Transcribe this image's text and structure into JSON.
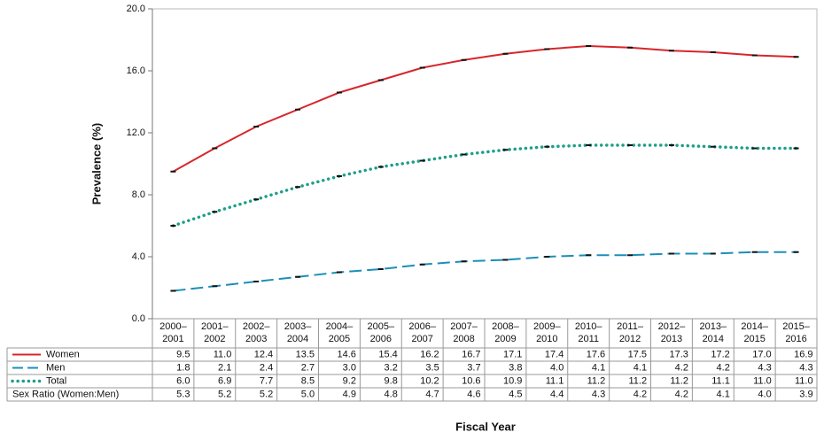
{
  "chart_data": {
    "type": "line",
    "y_label": "Prevalence (%)",
    "x_label": "Fiscal Year",
    "categories": [
      [
        "2000–",
        "2001"
      ],
      [
        "2001–",
        "2002"
      ],
      [
        "2002–",
        "2003"
      ],
      [
        "2003–",
        "2004"
      ],
      [
        "2004–",
        "2005"
      ],
      [
        "2005–",
        "2006"
      ],
      [
        "2006–",
        "2007"
      ],
      [
        "2007–",
        "2008"
      ],
      [
        "2008–",
        "2009"
      ],
      [
        "2009–",
        "2010"
      ],
      [
        "2010–",
        "2011"
      ],
      [
        "2011–",
        "2012"
      ],
      [
        "2012–",
        "2013"
      ],
      [
        "2013–",
        "2014"
      ],
      [
        "2014–",
        "2015"
      ],
      [
        "2015–",
        "2016"
      ]
    ],
    "ylim": [
      0,
      20
    ],
    "yticks": [
      {
        "value": 0,
        "label": "0.0"
      },
      {
        "value": 4,
        "label": "4.0"
      },
      {
        "value": 8,
        "label": "8.0"
      },
      {
        "value": 12,
        "label": "12.0"
      },
      {
        "value": 16,
        "label": "16.0"
      },
      {
        "value": 20,
        "label": "20.0"
      }
    ],
    "series": [
      {
        "name": "Women",
        "color": "#d7262b",
        "line_style": "solid",
        "values": [
          9.5,
          11.0,
          12.4,
          13.5,
          14.6,
          15.4,
          16.2,
          16.7,
          17.1,
          17.4,
          17.6,
          17.5,
          17.3,
          17.2,
          17.0,
          16.9
        ],
        "value_labels": [
          "9.5",
          "11.0",
          "12.4",
          "13.5",
          "14.6",
          "15.4",
          "16.2",
          "16.7",
          "17.1",
          "17.4",
          "17.6",
          "17.5",
          "17.3",
          "17.2",
          "17.0",
          "16.9"
        ]
      },
      {
        "name": "Men",
        "color": "#1a8fb8",
        "line_style": "dashed",
        "values": [
          1.8,
          2.1,
          2.4,
          2.7,
          3.0,
          3.2,
          3.5,
          3.7,
          3.8,
          4.0,
          4.1,
          4.1,
          4.2,
          4.2,
          4.3,
          4.3
        ],
        "value_labels": [
          "1.8",
          "2.1",
          "2.4",
          "2.7",
          "3.0",
          "3.2",
          "3.5",
          "3.7",
          "3.8",
          "4.0",
          "4.1",
          "4.1",
          "4.2",
          "4.2",
          "4.3",
          "4.3"
        ]
      },
      {
        "name": "Total",
        "color": "#1f9e89",
        "line_style": "dotted",
        "values": [
          6.0,
          6.9,
          7.7,
          8.5,
          9.2,
          9.8,
          10.2,
          10.6,
          10.9,
          11.1,
          11.2,
          11.2,
          11.2,
          11.1,
          11.0,
          11.0
        ],
        "value_labels": [
          "6.0",
          "6.9",
          "7.7",
          "8.5",
          "9.2",
          "9.8",
          "10.2",
          "10.6",
          "10.9",
          "11.1",
          "11.2",
          "11.2",
          "11.2",
          "11.1",
          "11.0",
          "11.0"
        ]
      }
    ],
    "table_rows": [
      {
        "name": "Sex Ratio (Women:Men)",
        "values": [
          "5.3",
          "5.2",
          "5.2",
          "5.0",
          "4.9",
          "4.8",
          "4.7",
          "4.6",
          "4.5",
          "4.4",
          "4.3",
          "4.2",
          "4.2",
          "4.1",
          "4.0",
          "3.9"
        ]
      }
    ]
  }
}
